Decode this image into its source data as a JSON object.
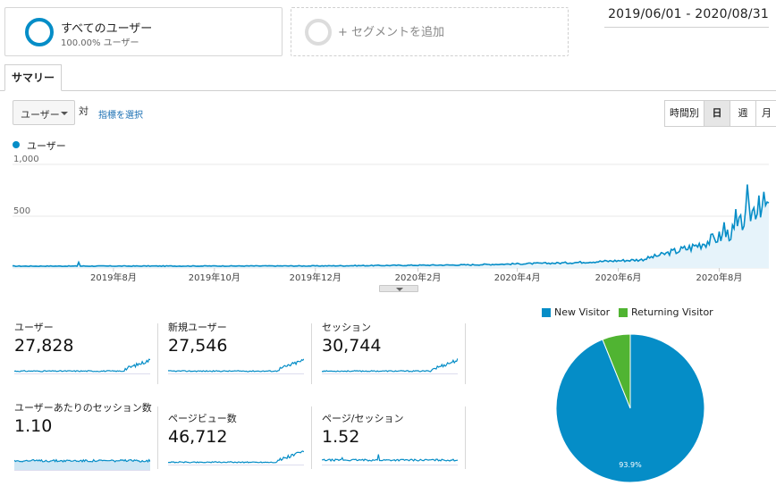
{
  "segments": {
    "all_users": {
      "title": "すべてのユーザー",
      "subtitle": "100.00% ユーザー"
    },
    "add_segment": {
      "label": "+ セグメントを追加"
    }
  },
  "date_range": "2019/06/01 - 2020/08/31",
  "tab": {
    "label": "サマリー"
  },
  "controls": {
    "metric_select": "ユーザー",
    "vs_label": "対",
    "choose_metric": "指標を選択",
    "time_buttons": [
      {
        "label": "時間別",
        "active": false
      },
      {
        "label": "日",
        "active": true
      },
      {
        "label": "週",
        "active": false
      },
      {
        "label": "月",
        "active": false
      }
    ]
  },
  "legend": {
    "series": "ユーザー"
  },
  "colors": {
    "primary": "#058dc7",
    "secondary": "#50b432",
    "fill": "#e6f3fa"
  },
  "chart_data": [
    {
      "type": "area",
      "series": [
        {
          "name": "ユーザー"
        }
      ],
      "y_ticks": [
        "1,000",
        "500"
      ],
      "ylim": [
        0,
        1000
      ],
      "x_ticks": [
        "2019年8月",
        "2019年10月",
        "2019年12月",
        "2020年2月",
        "2020年4月",
        "2020年6月",
        "2020年8月"
      ],
      "x_range": [
        "2019-06-01",
        "2020-08-31"
      ],
      "grid": true,
      "trend_anchors": [
        {
          "date": "2019-06-01",
          "value": 18
        },
        {
          "date": "2019-12-01",
          "value": 20
        },
        {
          "date": "2020-03-01",
          "value": 30
        },
        {
          "date": "2020-05-01",
          "value": 50
        },
        {
          "date": "2020-06-15",
          "value": 80
        },
        {
          "date": "2020-07-15",
          "value": 200
        },
        {
          "date": "2020-08-10",
          "value": 350
        },
        {
          "date": "2020-08-25",
          "value": 620
        },
        {
          "date": "2020-08-31",
          "value": 590
        }
      ]
    },
    {
      "type": "pie",
      "legend": [
        "New Visitor",
        "Returning Visitor"
      ],
      "values": [
        93.9,
        6.1
      ],
      "data_labels": [
        "93.9%"
      ]
    }
  ],
  "scorecards": [
    {
      "label": "ユーザー",
      "value": "27,828",
      "trend": "growing"
    },
    {
      "label": "新規ユーザー",
      "value": "27,546",
      "trend": "growing"
    },
    {
      "label": "セッション",
      "value": "30,744",
      "trend": "growing"
    },
    {
      "label": "ユーザーあたりのセッション数",
      "value": "1.10",
      "trend": "flat_filled"
    },
    {
      "label": "ページビュー数",
      "value": "46,712",
      "trend": "growing"
    },
    {
      "label": "ページ/セッション",
      "value": "1.52",
      "trend": "flat"
    }
  ]
}
